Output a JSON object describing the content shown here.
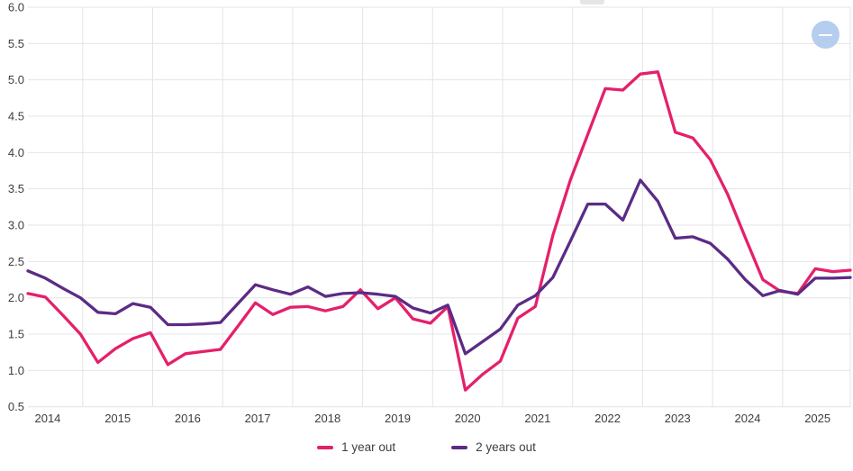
{
  "chart_data": {
    "type": "line",
    "title": "",
    "x_labels": [
      "2014",
      "2015",
      "2016",
      "2017",
      "2018",
      "2019",
      "2020",
      "2021",
      "2022",
      "2023",
      "2024",
      "2025"
    ],
    "y_tick_labels": [
      "6.0",
      "5.5",
      "5.0",
      "4.5",
      "4.0",
      "3.5",
      "3.0",
      "2.5",
      "2.0",
      "1.5",
      "1.0",
      "0.5"
    ],
    "ylim": [
      0.5,
      6.0
    ],
    "grid": true,
    "legend_position": "bottom",
    "points_per_year": 4,
    "series": [
      {
        "name": "1 year out",
        "color": "#e5206b",
        "values": [
          2.06,
          2.01,
          1.76,
          1.5,
          1.11,
          1.3,
          1.44,
          1.52,
          1.08,
          1.23,
          1.26,
          1.29,
          1.61,
          1.93,
          1.77,
          1.87,
          1.88,
          1.82,
          1.88,
          2.11,
          1.85,
          2.0,
          1.71,
          1.65,
          1.88,
          0.73,
          0.95,
          1.13,
          1.72,
          1.88,
          2.86,
          3.62,
          4.25,
          4.88,
          4.86,
          5.08,
          5.11,
          4.28,
          4.2,
          3.9,
          3.42,
          2.83,
          2.25,
          2.09,
          2.06,
          2.4,
          2.36,
          2.38
        ]
      },
      {
        "name": "2 years out",
        "color": "#5b2b85",
        "values": [
          2.37,
          2.27,
          2.13,
          2.0,
          1.8,
          1.78,
          1.92,
          1.87,
          1.63,
          1.63,
          1.64,
          1.66,
          1.92,
          2.18,
          2.11,
          2.05,
          2.15,
          2.02,
          2.06,
          2.07,
          2.05,
          2.02,
          1.86,
          1.79,
          1.9,
          1.23,
          1.4,
          1.57,
          1.9,
          2.03,
          2.28,
          2.78,
          3.29,
          3.29,
          3.07,
          3.62,
          3.33,
          2.82,
          2.84,
          2.75,
          2.53,
          2.25,
          2.03,
          2.1,
          2.05,
          2.27,
          2.27,
          2.28
        ]
      }
    ],
    "grid_color": "#e4e4e4",
    "label_color": "#3d3d3d"
  },
  "controls": {
    "zoom_out_icon": "minus-icon"
  }
}
